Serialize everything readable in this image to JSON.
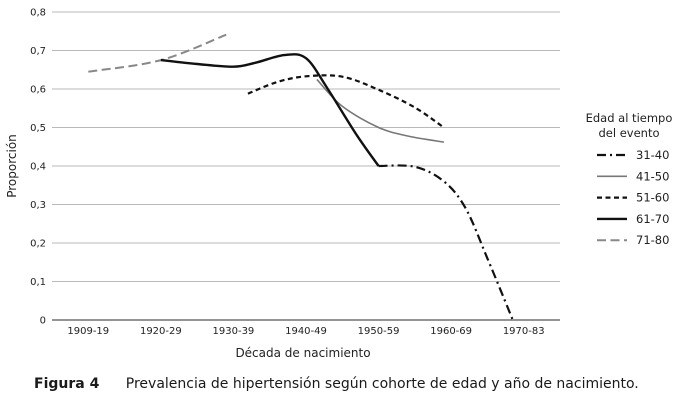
{
  "chart_data": {
    "type": "line",
    "categories": [
      "1909-19",
      "1920-29",
      "1930-39",
      "1940-49",
      "1950-59",
      "1960-69",
      "1970-83"
    ],
    "xlabel": "Década de nacimiento",
    "ylabel": "Proporción",
    "ylim": [
      0,
      0.8
    ],
    "yticks": [
      "0",
      "0,1",
      "0,2",
      "0,3",
      "0,4",
      "0,5",
      "0,6",
      "0,7",
      "0,8"
    ],
    "grid": true,
    "legend": {
      "title_line1": "Edad al tiempo",
      "title_line2": "del evento",
      "placement": "right"
    },
    "series": [
      {
        "name": "31-40",
        "style": "dashdot",
        "color": "#111111",
        "points": [
          [
            4.0,
            0.4
          ],
          [
            4.5,
            0.398
          ],
          [
            4.9,
            0.36
          ],
          [
            5.2,
            0.29
          ],
          [
            5.5,
            0.16
          ],
          [
            5.85,
            0.0
          ]
        ]
      },
      {
        "name": "41-50",
        "style": "solid-thin",
        "color": "#777777",
        "points": [
          [
            3.15,
            0.625
          ],
          [
            3.5,
            0.555
          ],
          [
            4.0,
            0.5
          ],
          [
            4.4,
            0.478
          ],
          [
            4.9,
            0.462
          ]
        ]
      },
      {
        "name": "51-60",
        "style": "dashed",
        "color": "#111111",
        "points": [
          [
            2.2,
            0.588
          ],
          [
            2.6,
            0.618
          ],
          [
            3.0,
            0.633
          ],
          [
            3.5,
            0.632
          ],
          [
            4.0,
            0.598
          ],
          [
            4.5,
            0.552
          ],
          [
            4.9,
            0.5
          ]
        ]
      },
      {
        "name": "61-70",
        "style": "solid-thick",
        "color": "#111111",
        "points": [
          [
            1.0,
            0.675
          ],
          [
            1.5,
            0.665
          ],
          [
            2.0,
            0.658
          ],
          [
            2.3,
            0.668
          ],
          [
            2.7,
            0.688
          ],
          [
            3.0,
            0.68
          ],
          [
            3.3,
            0.6
          ],
          [
            3.7,
            0.48
          ],
          [
            4.0,
            0.4
          ]
        ]
      },
      {
        "name": "71-80",
        "style": "longdash",
        "color": "#888888",
        "points": [
          [
            0.0,
            0.645
          ],
          [
            1.0,
            0.675
          ],
          [
            1.9,
            0.741
          ]
        ]
      }
    ]
  },
  "caption": {
    "label": "Figura 4",
    "text": "Prevalencia de hipertensión según cohorte de edad y año de nacimiento."
  }
}
